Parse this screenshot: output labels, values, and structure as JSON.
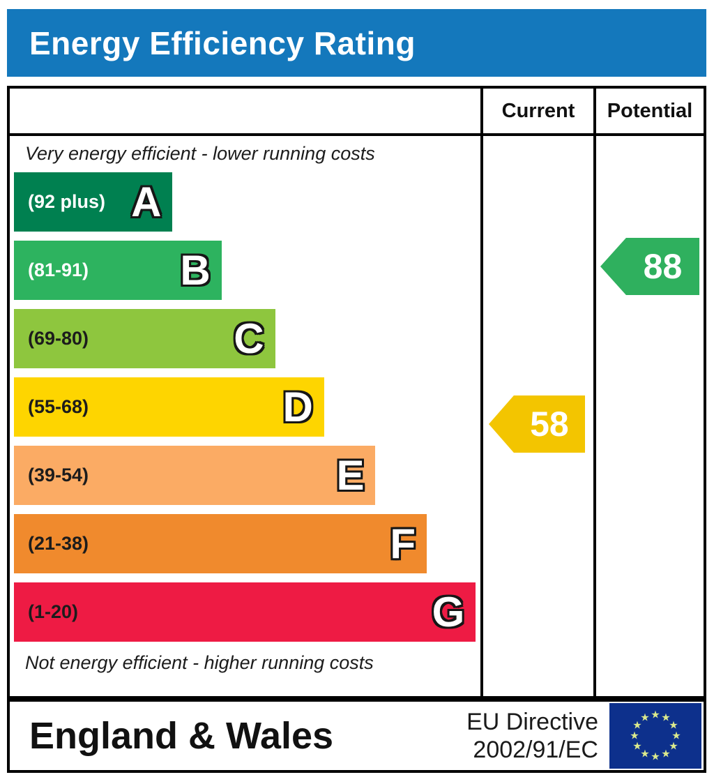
{
  "title": "Energy Efficiency Rating",
  "colors": {
    "header_bg": "#1478bc",
    "border": "#000000",
    "current_arrow": "#f3c500",
    "potential_arrow": "#2fb05e",
    "flag_bg": "#0d308c",
    "flag_star": "#dcea8d"
  },
  "table": {
    "col_current": "Current",
    "col_potential": "Potential",
    "top_note": "Very energy efficient - lower running costs",
    "bottom_note": "Not energy efficient - higher running costs"
  },
  "chart_data": {
    "type": "bar",
    "title": "Energy Efficiency Rating",
    "bands": [
      {
        "letter": "A",
        "range_label": "(92 plus)",
        "min": 92,
        "max": 100,
        "color": "#008050",
        "label_color": "#ffffff",
        "width_pct": 34
      },
      {
        "letter": "B",
        "range_label": "(81-91)",
        "min": 81,
        "max": 91,
        "color": "#2db35f",
        "label_color": "#ffffff",
        "width_pct": 44.5
      },
      {
        "letter": "C",
        "range_label": "(69-80)",
        "min": 69,
        "max": 80,
        "color": "#8ec63e",
        "label_color": "#1c1c1c",
        "width_pct": 56
      },
      {
        "letter": "D",
        "range_label": "(55-68)",
        "min": 55,
        "max": 68,
        "color": "#fed500",
        "label_color": "#1c1c1c",
        "width_pct": 66.5
      },
      {
        "letter": "E",
        "range_label": "(39-54)",
        "min": 39,
        "max": 54,
        "color": "#fbab64",
        "label_color": "#1c1c1c",
        "width_pct": 77.5
      },
      {
        "letter": "F",
        "range_label": "(21-38)",
        "min": 21,
        "max": 38,
        "color": "#f08a2d",
        "label_color": "#1c1c1c",
        "width_pct": 88.5
      },
      {
        "letter": "G",
        "range_label": "(1-20)",
        "min": 1,
        "max": 20,
        "color": "#ee1b44",
        "label_color": "#1c1c1c",
        "width_pct": 99
      }
    ],
    "current": {
      "value": 58,
      "band": "D",
      "band_index": 3,
      "color": "#f3c500"
    },
    "potential": {
      "value": 88,
      "band": "B",
      "band_index": 1,
      "color": "#2fb05e"
    }
  },
  "footer": {
    "region": "England & Wales",
    "directive_line1": "EU Directive",
    "directive_line2": "2002/91/EC",
    "flag": "eu-flag"
  }
}
